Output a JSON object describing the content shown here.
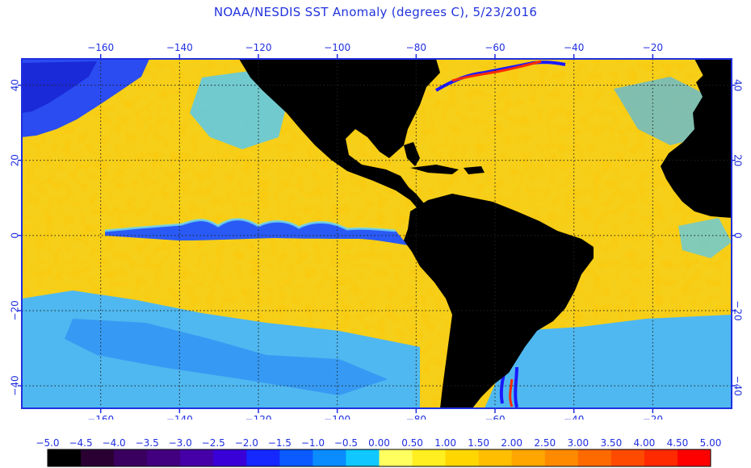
{
  "title": "NOAA/NESDIS SST Anomaly (degrees C), 5/23/2016",
  "colors": {
    "axis": "#1f2fe0",
    "land": "#000000",
    "ocean_base": "#f6cf1a",
    "grid": "#222222"
  },
  "map": {
    "lon_range": [
      -180,
      0
    ],
    "lat_range": [
      -46,
      47
    ],
    "lon_ticks": [
      -160,
      -140,
      -120,
      -100,
      -80,
      -60,
      -40,
      -20
    ],
    "lon_tick_labels": [
      "−160",
      "−140",
      "−120",
      "−100",
      "−80",
      "−60",
      "−40",
      "−20"
    ],
    "lat_ticks": [
      40,
      20,
      0,
      -20,
      -40
    ],
    "lat_tick_labels": [
      "40",
      "20",
      "0",
      "−20",
      "−40"
    ],
    "grid": "dotted"
  },
  "colorbar": {
    "labels": [
      "−5.0",
      "−4.5",
      "−4.0",
      "−3.5",
      "−3.0",
      "−2.5",
      "−2.0",
      "−1.5",
      "−1.0",
      "−0.5",
      "0.00",
      "0.50",
      "1.00",
      "1.50",
      "2.00",
      "2.50",
      "3.00",
      "3.50",
      "4.00",
      "4.50",
      "5.00"
    ],
    "colors": [
      "#000000",
      "#2a0033",
      "#3a0060",
      "#420080",
      "#4500a8",
      "#3a00d8",
      "#1428ff",
      "#0a5aff",
      "#0a8cff",
      "#10c8ff",
      "#ffff60",
      "#ffee20",
      "#ffd600",
      "#ffbe00",
      "#ffa600",
      "#ff8a00",
      "#ff6a00",
      "#ff4a00",
      "#ff2a00",
      "#ff0000"
    ]
  }
}
